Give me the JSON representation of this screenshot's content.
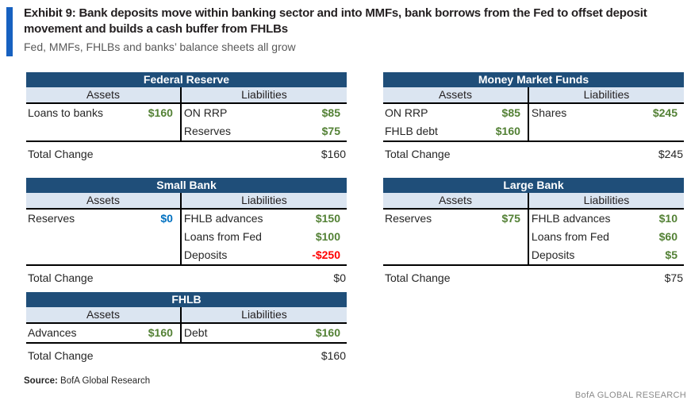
{
  "page": {
    "title": "Exhibit 9: Bank deposits move within banking sector and into MMFs, bank borrows from the Fed to offset deposit movement and builds a cash buffer from FHLBs",
    "subtitle": "Fed, MMFs, FHLBs and banks’ balance sheets all grow",
    "source_label": "Source:",
    "source_text": "BofA Global Research",
    "footer_brand": "BofA GLOBAL RESEARCH"
  },
  "colors": {
    "accent_bar": "#1761c0",
    "table_header_bg": "#1f4e79",
    "subheader_bg": "#dbe5f1",
    "positive_green": "#538135",
    "neutral_blue": "#0070c0",
    "negative_red": "#ff0000"
  },
  "tables": {
    "fed": {
      "title": "Federal Reserve",
      "assets_header": "Assets",
      "liabilities_header": "Liabilities",
      "assets_rows": [
        {
          "label": "Loans to banks",
          "value": "$160",
          "color": "#538135"
        }
      ],
      "liab_rows": [
        {
          "label": "ON RRP",
          "value": "$85",
          "color": "#538135"
        },
        {
          "label": "Reserves",
          "value": "$75",
          "color": "#538135"
        }
      ],
      "total_label": "Total Change",
      "total_value": "$160"
    },
    "mmf": {
      "title": "Money Market Funds",
      "assets_header": "Assets",
      "liabilities_header": "Liabilities",
      "assets_rows": [
        {
          "label": "ON RRP",
          "value": "$85",
          "color": "#538135"
        },
        {
          "label": "FHLB debt",
          "value": "$160",
          "color": "#538135"
        }
      ],
      "liab_rows": [
        {
          "label": "Shares",
          "value": "$245",
          "color": "#538135"
        }
      ],
      "total_label": "Total Change",
      "total_value": "$245"
    },
    "small": {
      "title": "Small Bank",
      "assets_header": "Assets",
      "liabilities_header": "Liabilities",
      "assets_rows": [
        {
          "label": "Reserves",
          "value": "$0",
          "color": "#0070c0"
        }
      ],
      "liab_rows": [
        {
          "label": "FHLB advances",
          "value": "$150",
          "color": "#538135"
        },
        {
          "label": "Loans from Fed",
          "value": "$100",
          "color": "#538135"
        },
        {
          "label": "Deposits",
          "value": "-$250",
          "color": "#ff0000"
        }
      ],
      "total_label": "Total Change",
      "total_value": "$0"
    },
    "large": {
      "title": "Large Bank",
      "assets_header": "Assets",
      "liabilities_header": "Liabilities",
      "assets_rows": [
        {
          "label": "Reserves",
          "value": "$75",
          "color": "#538135"
        }
      ],
      "liab_rows": [
        {
          "label": "FHLB advances",
          "value": "$10",
          "color": "#538135"
        },
        {
          "label": "Loans from Fed",
          "value": "$60",
          "color": "#538135"
        },
        {
          "label": "Deposits",
          "value": "$5",
          "color": "#538135"
        }
      ],
      "total_label": "Total Change",
      "total_value": "$75"
    },
    "fhlb": {
      "title": "FHLB",
      "assets_header": "Assets",
      "liabilities_header": "Liabilities",
      "assets_rows": [
        {
          "label": "Advances",
          "value": "$160",
          "color": "#538135"
        }
      ],
      "liab_rows": [
        {
          "label": "Debt",
          "value": "$160",
          "color": "#538135"
        }
      ],
      "total_label": "Total Change",
      "total_value": "$160"
    }
  }
}
